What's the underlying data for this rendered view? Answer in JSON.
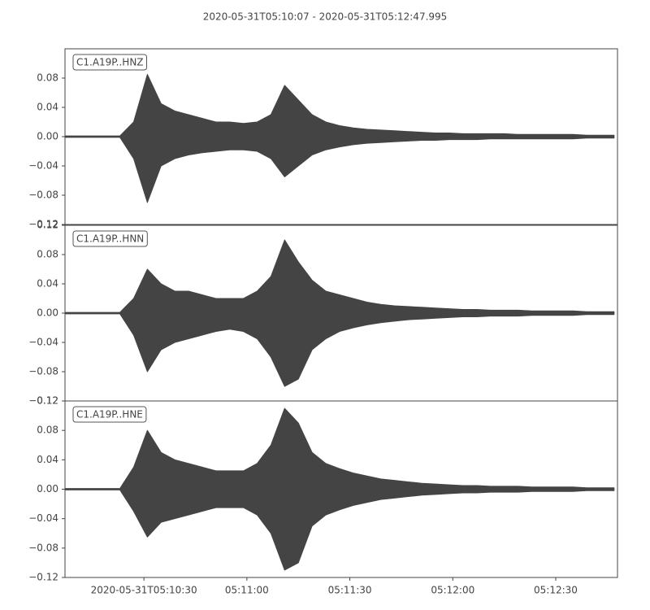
{
  "chart_data": [
    {
      "type": "area",
      "title": "2020-05-31T05:10:07  -  2020-05-31T05:12:47.995",
      "label": "C1.A19P..HNZ",
      "x": [
        "2020-05-31T05:10:07",
        "2020-05-31T05:10:11",
        "2020-05-31T05:10:15",
        "2020-05-31T05:10:19",
        "2020-05-31T05:10:23",
        "2020-05-31T05:10:27",
        "2020-05-31T05:10:31",
        "2020-05-31T05:10:35",
        "2020-05-31T05:10:39",
        "2020-05-31T05:10:43",
        "2020-05-31T05:10:47",
        "2020-05-31T05:10:51",
        "2020-05-31T05:10:55",
        "2020-05-31T05:10:59",
        "2020-05-31T05:11:03",
        "2020-05-31T05:11:07",
        "2020-05-31T05:11:11",
        "2020-05-31T05:11:15",
        "2020-05-31T05:11:19",
        "2020-05-31T05:11:23",
        "2020-05-31T05:11:27",
        "2020-05-31T05:11:31",
        "2020-05-31T05:11:35",
        "2020-05-31T05:11:39",
        "2020-05-31T05:11:43",
        "2020-05-31T05:11:47",
        "2020-05-31T05:11:51",
        "2020-05-31T05:11:55",
        "2020-05-31T05:11:59",
        "2020-05-31T05:12:03",
        "2020-05-31T05:12:07",
        "2020-05-31T05:12:11",
        "2020-05-31T05:12:15",
        "2020-05-31T05:12:19",
        "2020-05-31T05:12:23",
        "2020-05-31T05:12:27",
        "2020-05-31T05:12:31",
        "2020-05-31T05:12:35",
        "2020-05-31T05:12:39",
        "2020-05-31T05:12:43",
        "2020-05-31T05:12:47"
      ],
      "series": [
        {
          "color": "#444444",
          "values": [
            0.001,
            0.001,
            0.001,
            0.001,
            0.001,
            0.02,
            0.085,
            0.045,
            0.035,
            0.03,
            0.025,
            0.02,
            0.02,
            0.018,
            0.02,
            0.03,
            0.07,
            0.05,
            0.03,
            0.02,
            0.015,
            0.012,
            0.01,
            0.009,
            0.008,
            0.007,
            0.006,
            0.005,
            0.005,
            0.004,
            0.004,
            0.004,
            0.004,
            0.003,
            0.003,
            0.003,
            0.003,
            0.003,
            0.002,
            0.002,
            0.002
          ]
        },
        {
          "color": "#444444",
          "values": [
            -0.001,
            -0.001,
            -0.001,
            -0.001,
            -0.001,
            -0.03,
            -0.09,
            -0.04,
            -0.03,
            -0.025,
            -0.022,
            -0.02,
            -0.018,
            -0.018,
            -0.02,
            -0.03,
            -0.055,
            -0.04,
            -0.025,
            -0.018,
            -0.014,
            -0.011,
            -0.009,
            -0.008,
            -0.007,
            -0.006,
            -0.005,
            -0.005,
            -0.004,
            -0.004,
            -0.004,
            -0.003,
            -0.003,
            -0.003,
            -0.003,
            -0.003,
            -0.003,
            -0.003,
            -0.002,
            -0.002,
            -0.002
          ]
        }
      ],
      "xlim": [
        "2020-05-31T05:10:07",
        "2020-05-31T05:12:47.995"
      ],
      "ylim": [
        -0.12,
        0.12
      ],
      "yticks": [
        {
          "value": -0.12,
          "label": "−0.12"
        },
        {
          "value": -0.08,
          "label": "−0.08"
        },
        {
          "value": -0.04,
          "label": "−0.04"
        },
        {
          "value": 0,
          "label": "0.00"
        },
        {
          "value": 0.04,
          "label": "0.04"
        },
        {
          "value": 0.08,
          "label": "0.08"
        }
      ]
    },
    {
      "type": "area",
      "label": "C1.A19P..HNN",
      "x": [
        "2020-05-31T05:10:07",
        "2020-05-31T05:10:11",
        "2020-05-31T05:10:15",
        "2020-05-31T05:10:19",
        "2020-05-31T05:10:23",
        "2020-05-31T05:10:27",
        "2020-05-31T05:10:31",
        "2020-05-31T05:10:35",
        "2020-05-31T05:10:39",
        "2020-05-31T05:10:43",
        "2020-05-31T05:10:47",
        "2020-05-31T05:10:51",
        "2020-05-31T05:10:55",
        "2020-05-31T05:10:59",
        "2020-05-31T05:11:03",
        "2020-05-31T05:11:07",
        "2020-05-31T05:11:11",
        "2020-05-31T05:11:15",
        "2020-05-31T05:11:19",
        "2020-05-31T05:11:23",
        "2020-05-31T05:11:27",
        "2020-05-31T05:11:31",
        "2020-05-31T05:11:35",
        "2020-05-31T05:11:39",
        "2020-05-31T05:11:43",
        "2020-05-31T05:11:47",
        "2020-05-31T05:11:51",
        "2020-05-31T05:11:55",
        "2020-05-31T05:11:59",
        "2020-05-31T05:12:03",
        "2020-05-31T05:12:07",
        "2020-05-31T05:12:11",
        "2020-05-31T05:12:15",
        "2020-05-31T05:12:19",
        "2020-05-31T05:12:23",
        "2020-05-31T05:12:27",
        "2020-05-31T05:12:31",
        "2020-05-31T05:12:35",
        "2020-05-31T05:12:39",
        "2020-05-31T05:12:43",
        "2020-05-31T05:12:47"
      ],
      "series": [
        {
          "color": "#444444",
          "values": [
            0.001,
            0.001,
            0.001,
            0.001,
            0.001,
            0.02,
            0.06,
            0.04,
            0.03,
            0.03,
            0.025,
            0.02,
            0.02,
            0.02,
            0.03,
            0.05,
            0.1,
            0.07,
            0.045,
            0.03,
            0.025,
            0.02,
            0.015,
            0.012,
            0.01,
            0.009,
            0.008,
            0.007,
            0.006,
            0.005,
            0.005,
            0.004,
            0.004,
            0.004,
            0.003,
            0.003,
            0.003,
            0.003,
            0.002,
            0.002,
            0.002
          ]
        },
        {
          "color": "#444444",
          "values": [
            -0.001,
            -0.001,
            -0.001,
            -0.001,
            -0.001,
            -0.03,
            -0.08,
            -0.05,
            -0.04,
            -0.035,
            -0.03,
            -0.025,
            -0.022,
            -0.025,
            -0.035,
            -0.06,
            -0.1,
            -0.09,
            -0.05,
            -0.035,
            -0.025,
            -0.02,
            -0.016,
            -0.013,
            -0.011,
            -0.009,
            -0.008,
            -0.007,
            -0.006,
            -0.005,
            -0.005,
            -0.004,
            -0.004,
            -0.004,
            -0.003,
            -0.003,
            -0.003,
            -0.003,
            -0.002,
            -0.002,
            -0.002
          ]
        }
      ],
      "xlim": [
        "2020-05-31T05:10:07",
        "2020-05-31T05:12:47.995"
      ],
      "ylim": [
        -0.12,
        0.12
      ],
      "yticks": [
        {
          "value": -0.12,
          "label": "−0.12"
        },
        {
          "value": -0.08,
          "label": "−0.08"
        },
        {
          "value": -0.04,
          "label": "−0.04"
        },
        {
          "value": 0,
          "label": "0.00"
        },
        {
          "value": 0.04,
          "label": "0.04"
        },
        {
          "value": 0.08,
          "label": "0.08"
        },
        {
          "value": 0.12,
          "label": "0.12"
        }
      ]
    },
    {
      "type": "area",
      "label": "C1.A19P..HNE",
      "x": [
        "2020-05-31T05:10:07",
        "2020-05-31T05:10:11",
        "2020-05-31T05:10:15",
        "2020-05-31T05:10:19",
        "2020-05-31T05:10:23",
        "2020-05-31T05:10:27",
        "2020-05-31T05:10:31",
        "2020-05-31T05:10:35",
        "2020-05-31T05:10:39",
        "2020-05-31T05:10:43",
        "2020-05-31T05:10:47",
        "2020-05-31T05:10:51",
        "2020-05-31T05:10:55",
        "2020-05-31T05:10:59",
        "2020-05-31T05:11:03",
        "2020-05-31T05:11:07",
        "2020-05-31T05:11:11",
        "2020-05-31T05:11:15",
        "2020-05-31T05:11:19",
        "2020-05-31T05:11:23",
        "2020-05-31T05:11:27",
        "2020-05-31T05:11:31",
        "2020-05-31T05:11:35",
        "2020-05-31T05:11:39",
        "2020-05-31T05:11:43",
        "2020-05-31T05:11:47",
        "2020-05-31T05:11:51",
        "2020-05-31T05:11:55",
        "2020-05-31T05:11:59",
        "2020-05-31T05:12:03",
        "2020-05-31T05:12:07",
        "2020-05-31T05:12:11",
        "2020-05-31T05:12:15",
        "2020-05-31T05:12:19",
        "2020-05-31T05:12:23",
        "2020-05-31T05:12:27",
        "2020-05-31T05:12:31",
        "2020-05-31T05:12:35",
        "2020-05-31T05:12:39",
        "2020-05-31T05:12:43",
        "2020-05-31T05:12:47"
      ],
      "series": [
        {
          "color": "#444444",
          "values": [
            0.001,
            0.001,
            0.001,
            0.001,
            0.001,
            0.03,
            0.08,
            0.05,
            0.04,
            0.035,
            0.03,
            0.025,
            0.025,
            0.025,
            0.035,
            0.06,
            0.11,
            0.09,
            0.05,
            0.035,
            0.028,
            0.022,
            0.018,
            0.014,
            0.012,
            0.01,
            0.008,
            0.007,
            0.006,
            0.005,
            0.005,
            0.004,
            0.004,
            0.004,
            0.003,
            0.003,
            0.003,
            0.003,
            0.002,
            0.002,
            0.002
          ]
        },
        {
          "color": "#444444",
          "values": [
            -0.001,
            -0.001,
            -0.001,
            -0.001,
            -0.001,
            -0.03,
            -0.065,
            -0.045,
            -0.04,
            -0.035,
            -0.03,
            -0.025,
            -0.025,
            -0.025,
            -0.035,
            -0.06,
            -0.11,
            -0.1,
            -0.05,
            -0.035,
            -0.028,
            -0.022,
            -0.018,
            -0.014,
            -0.012,
            -0.01,
            -0.008,
            -0.007,
            -0.006,
            -0.005,
            -0.005,
            -0.004,
            -0.004,
            -0.004,
            -0.003,
            -0.003,
            -0.003,
            -0.003,
            -0.002,
            -0.002,
            -0.002
          ]
        }
      ],
      "xlim": [
        "2020-05-31T05:10:07",
        "2020-05-31T05:12:47.995"
      ],
      "ylim": [
        -0.12,
        0.12
      ],
      "yticks": [
        {
          "value": -0.12,
          "label": "−0.12"
        },
        {
          "value": -0.08,
          "label": "−0.08"
        },
        {
          "value": -0.04,
          "label": "−0.04"
        },
        {
          "value": 0,
          "label": "0.00"
        },
        {
          "value": 0.04,
          "label": "0.04"
        },
        {
          "value": 0.08,
          "label": "0.08"
        },
        {
          "value": 0.12,
          "label": "0.12"
        }
      ],
      "xticks": [
        "2020-05-31T05:10:30",
        {
          "value": "2020-05-31T05:11:00",
          "label": "05:11:00"
        },
        {
          "value": "2020-05-31T05:11:30",
          "label": "05:11:30"
        },
        {
          "value": "2020-05-31T05:12:00",
          "label": "05:12:00"
        },
        {
          "value": "2020-05-31T05:12:30",
          "label": "05:12:30"
        }
      ]
    }
  ]
}
